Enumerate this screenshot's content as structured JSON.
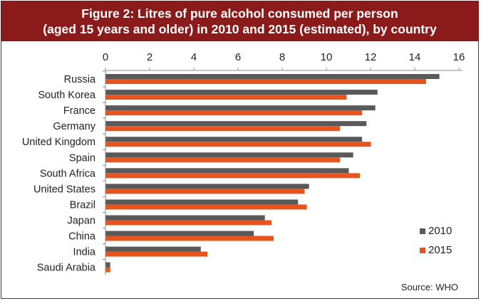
{
  "title_line1": "Figure 2: Litres of pure alcohol consumed per person",
  "title_line2": "(aged 15 years and older) in 2010 and 2015 (estimated), by country",
  "source": "Source: WHO",
  "colors": {
    "title_background": "#8b1a1a",
    "series_2010": "#595959",
    "series_2015": "#e8541e"
  },
  "chart_data": {
    "type": "bar",
    "orientation": "horizontal",
    "categories": [
      "Russia",
      "South Korea",
      "France",
      "Germany",
      "United Kingdom",
      "Spain",
      "South Africa",
      "United States",
      "Brazil",
      "Japan",
      "China",
      "India",
      "Saudi Arabia"
    ],
    "series": [
      {
        "name": "2010",
        "color": "#595959",
        "values": [
          15.1,
          12.3,
          12.2,
          11.8,
          11.6,
          11.2,
          11.0,
          9.2,
          8.7,
          7.2,
          6.7,
          4.3,
          0.2
        ]
      },
      {
        "name": "2015",
        "color": "#e8541e",
        "values": [
          14.5,
          10.9,
          11.6,
          10.6,
          12.0,
          10.6,
          11.5,
          9.0,
          9.1,
          7.5,
          7.6,
          4.6,
          0.2
        ]
      }
    ],
    "xlim": [
      0,
      16
    ],
    "xticks": [
      "0",
      "2",
      "4",
      "6",
      "8",
      "10",
      "12",
      "14",
      "16"
    ],
    "xaxis_position": "top",
    "grid": false,
    "legend_position": "bottom-right"
  }
}
